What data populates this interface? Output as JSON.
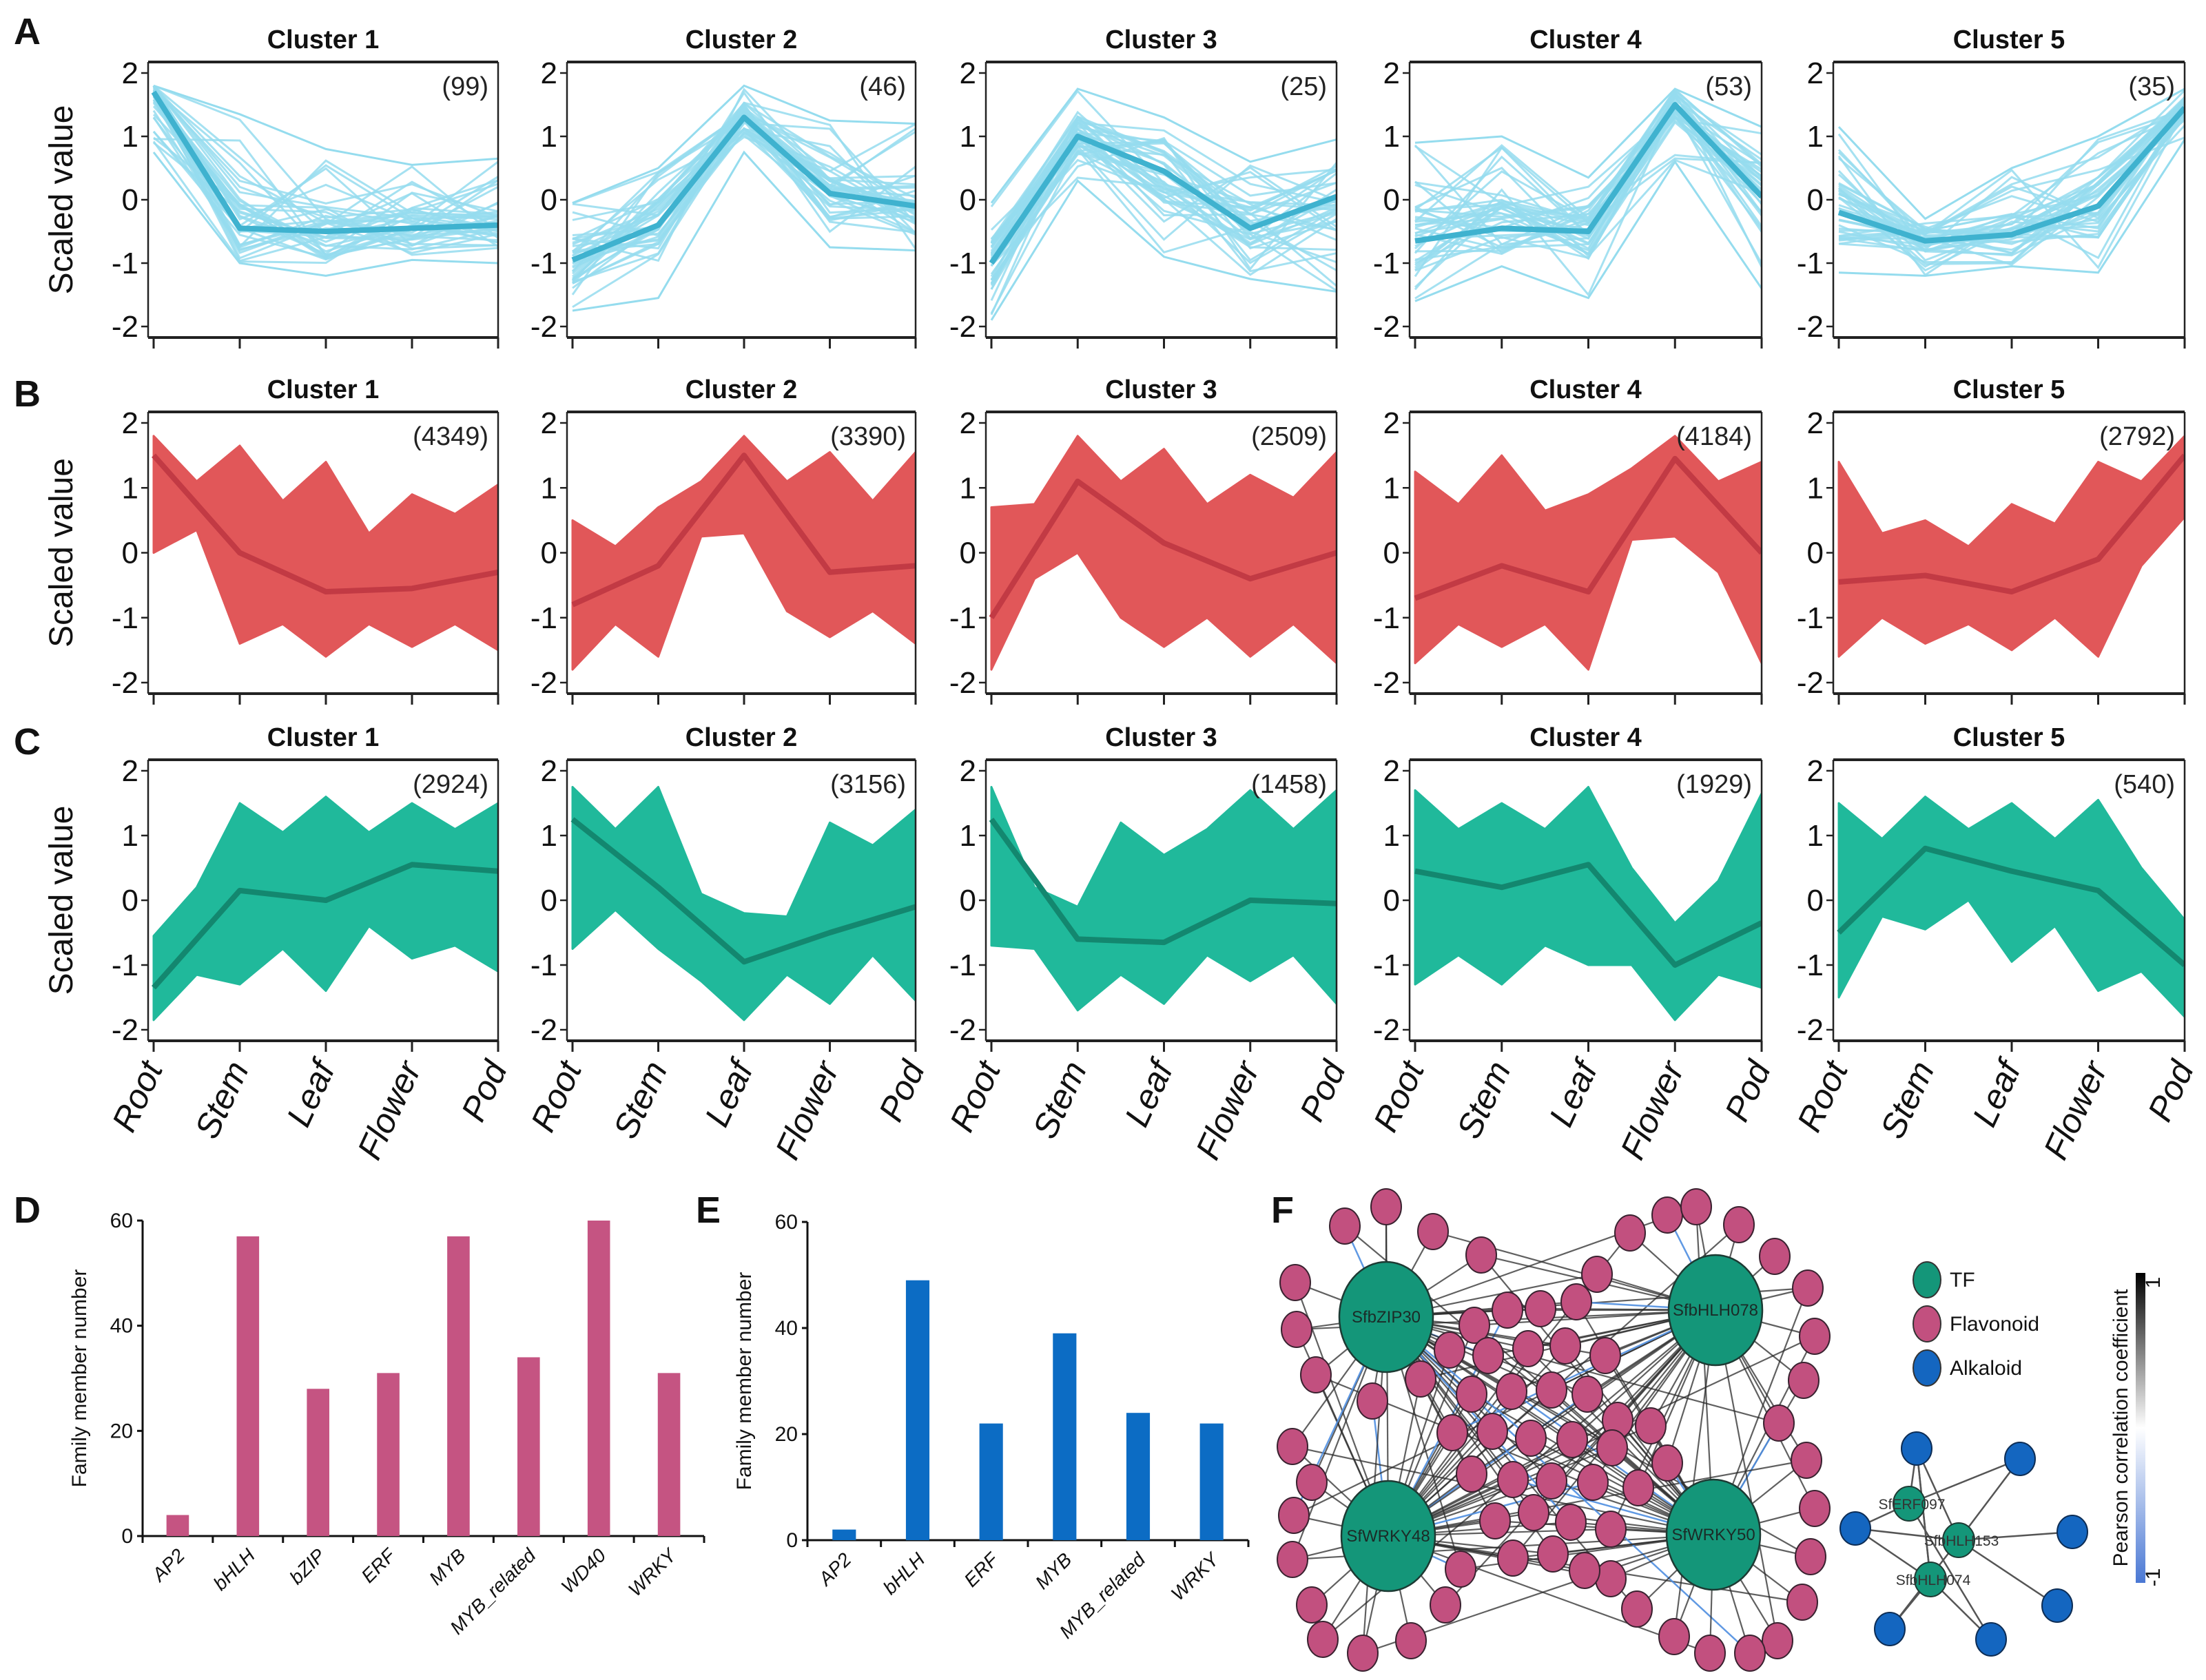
{
  "figure": {
    "panel_labels": [
      "A",
      "B",
      "C",
      "D",
      "E",
      "F"
    ]
  },
  "chart_data": [
    {
      "id": "A",
      "type": "line",
      "title": "",
      "ylabel": "Scaled value",
      "ylim": [
        -2,
        2
      ],
      "yticks": [
        "2",
        "1",
        "0",
        "-1",
        "-2"
      ],
      "ytick_values": [
        2,
        1,
        0,
        -1,
        -2
      ],
      "x": [
        "Root",
        "Stem",
        "Leaf",
        "Flower",
        "Pod"
      ],
      "colors": {
        "lines": "#95dcee",
        "mean": "#3fb2cf"
      },
      "style": "lines",
      "clusters": [
        {
          "title": "Cluster 1",
          "count": "(99)",
          "mean": [
            1.7,
            -0.45,
            -0.5,
            -0.45,
            -0.4
          ],
          "upper": [
            1.8,
            1.35,
            0.8,
            0.55,
            0.65
          ],
          "lower": [
            0.75,
            -1.0,
            -1.2,
            -0.95,
            -1.0
          ]
        },
        {
          "title": "Cluster 2",
          "count": "(46)",
          "mean": [
            -0.95,
            -0.4,
            1.3,
            0.1,
            -0.1
          ],
          "upper": [
            -0.05,
            0.5,
            1.8,
            1.25,
            1.2
          ],
          "lower": [
            -1.75,
            -1.55,
            0.75,
            -0.75,
            -0.8
          ]
        },
        {
          "title": "Cluster 3",
          "count": "(25)",
          "mean": [
            -1.0,
            1.0,
            0.45,
            -0.45,
            0.05
          ],
          "upper": [
            -0.05,
            1.75,
            1.3,
            0.6,
            0.95
          ],
          "lower": [
            -1.9,
            0.3,
            -0.9,
            -1.25,
            -1.45
          ]
        },
        {
          "title": "Cluster 4",
          "count": "(53)",
          "mean": [
            -0.65,
            -0.45,
            -0.5,
            1.5,
            0.05
          ],
          "upper": [
            0.9,
            1.0,
            0.35,
            1.75,
            1.15
          ],
          "lower": [
            -1.6,
            -1.05,
            -1.55,
            0.6,
            -1.4
          ]
        },
        {
          "title": "Cluster 5",
          "count": "(35)",
          "mean": [
            -0.2,
            -0.65,
            -0.55,
            -0.1,
            1.45
          ],
          "upper": [
            1.15,
            -0.3,
            0.5,
            1.0,
            1.75
          ],
          "lower": [
            -1.15,
            -1.2,
            -1.05,
            -1.15,
            0.95
          ]
        }
      ]
    },
    {
      "id": "B",
      "type": "area",
      "ylabel": "Scaled value",
      "ylim": [
        -2,
        2
      ],
      "yticks": [
        "2",
        "1",
        "0",
        "-1",
        "-2"
      ],
      "ytick_values": [
        2,
        1,
        0,
        -1,
        -2
      ],
      "x": [
        "Root",
        "Stem",
        "Leaf",
        "Flower",
        "Pod"
      ],
      "colors": {
        "fill": "#e15759",
        "mean": "#c23a44"
      },
      "style": "band",
      "clusters": [
        {
          "title": "Cluster 1",
          "count": "(4349)",
          "mean": [
            1.5,
            0.0,
            -0.6,
            -0.55,
            -0.3
          ],
          "upper_peaks": [
            1.8,
            1.1,
            1.65,
            0.8,
            1.4,
            0.3,
            0.9,
            0.6,
            1.05
          ],
          "lower_peaks": [
            0.0,
            0.35,
            -1.4,
            -1.1,
            -1.6,
            -1.1,
            -1.45,
            -1.1,
            -1.5
          ]
        },
        {
          "title": "Cluster 2",
          "count": "(3390)",
          "mean": [
            -0.8,
            -0.2,
            1.5,
            -0.3,
            -0.2
          ],
          "upper_peaks": [
            0.5,
            0.1,
            0.7,
            1.1,
            1.8,
            1.1,
            1.55,
            0.8,
            1.55
          ],
          "lower_peaks": [
            -1.8,
            -1.1,
            -1.6,
            0.25,
            0.3,
            -0.9,
            -1.3,
            -0.9,
            -1.4
          ]
        },
        {
          "title": "Cluster 3",
          "count": "(2509)",
          "mean": [
            -1.0,
            1.1,
            0.15,
            -0.4,
            0.0
          ],
          "upper_peaks": [
            0.7,
            0.75,
            1.8,
            1.1,
            1.6,
            0.75,
            1.2,
            0.85,
            1.55
          ],
          "lower_peaks": [
            -1.8,
            -0.4,
            0.0,
            -1.0,
            -1.45,
            -1.0,
            -1.6,
            -1.1,
            -1.7
          ]
        },
        {
          "title": "Cluster 4",
          "count": "(4184)",
          "mean": [
            -0.7,
            -0.2,
            -0.6,
            1.45,
            0.0
          ],
          "upper_peaks": [
            1.25,
            0.75,
            1.5,
            0.65,
            0.9,
            1.3,
            1.8,
            1.1,
            1.4
          ],
          "lower_peaks": [
            -1.7,
            -1.1,
            -1.45,
            -1.1,
            -1.8,
            0.2,
            0.25,
            -0.3,
            -1.7
          ]
        },
        {
          "title": "Cluster 5",
          "count": "(2792)",
          "mean": [
            -0.45,
            -0.35,
            -0.6,
            -0.1,
            1.5
          ],
          "upper_peaks": [
            1.4,
            0.3,
            0.5,
            0.1,
            0.75,
            0.45,
            1.4,
            1.1,
            1.8
          ],
          "lower_peaks": [
            -1.6,
            -1.0,
            -1.4,
            -1.1,
            -1.5,
            -1.0,
            -1.6,
            -0.2,
            0.55
          ]
        }
      ]
    },
    {
      "id": "C",
      "type": "area",
      "ylabel": "Scaled value",
      "ylim": [
        -2,
        2
      ],
      "yticks": [
        "2",
        "1",
        "0",
        "-1",
        "-2"
      ],
      "ytick_values": [
        2,
        1,
        0,
        -1,
        -2
      ],
      "x": [
        "Root",
        "Stem",
        "Leaf",
        "Flower",
        "Pod"
      ],
      "colors": {
        "fill": "#20b99b",
        "mean": "#13876f"
      },
      "style": "band",
      "clusters": [
        {
          "title": "Cluster 1",
          "count": "(2924)",
          "mean": [
            -1.35,
            0.15,
            0.0,
            0.55,
            0.45
          ],
          "upper_peaks": [
            -0.55,
            0.2,
            1.5,
            1.05,
            1.6,
            1.05,
            1.5,
            1.1,
            1.5
          ],
          "lower_peaks": [
            -1.85,
            -1.15,
            -1.3,
            -0.75,
            -1.4,
            -0.4,
            -0.9,
            -0.7,
            -1.1
          ]
        },
        {
          "title": "Cluster 2",
          "count": "(3156)",
          "mean": [
            1.25,
            0.2,
            -0.95,
            -0.5,
            -0.1
          ],
          "upper_peaks": [
            1.75,
            1.1,
            1.75,
            0.1,
            -0.2,
            -0.25,
            1.2,
            0.85,
            1.4
          ],
          "lower_peaks": [
            -0.75,
            -0.15,
            -0.75,
            -1.25,
            -1.85,
            -1.15,
            -1.6,
            -0.85,
            -1.55
          ]
        },
        {
          "title": "Cluster 3",
          "count": "(1458)",
          "mean": [
            1.25,
            -0.6,
            -0.65,
            0.0,
            -0.05
          ],
          "upper_peaks": [
            1.75,
            0.2,
            -0.1,
            1.2,
            0.7,
            1.1,
            1.7,
            1.1,
            1.7
          ],
          "lower_peaks": [
            -0.7,
            -0.75,
            -1.7,
            -1.15,
            -1.6,
            -0.85,
            -1.25,
            -0.85,
            -1.6
          ]
        },
        {
          "title": "Cluster 4",
          "count": "(1929)",
          "mean": [
            0.45,
            0.2,
            0.55,
            -1.0,
            -0.35
          ],
          "upper_peaks": [
            1.7,
            1.1,
            1.5,
            1.1,
            1.75,
            0.5,
            -0.35,
            0.3,
            1.65
          ],
          "lower_peaks": [
            -1.3,
            -0.85,
            -1.3,
            -0.7,
            -1.0,
            -1.0,
            -1.85,
            -1.15,
            -1.35
          ]
        },
        {
          "title": "Cluster 5",
          "count": "(540)",
          "mean": [
            -0.5,
            0.8,
            0.45,
            0.15,
            -1.0
          ],
          "upper_peaks": [
            1.5,
            0.95,
            1.6,
            1.1,
            1.5,
            0.95,
            1.55,
            0.5,
            -0.3
          ],
          "lower_peaks": [
            -1.5,
            -0.25,
            -0.45,
            0.0,
            -0.95,
            -0.4,
            -1.4,
            -1.1,
            -1.8
          ]
        }
      ]
    },
    {
      "id": "D",
      "type": "bar",
      "title": "",
      "xlabel": "",
      "ylabel": "Family member number",
      "ylim": [
        0,
        60
      ],
      "yticks": [
        "0",
        "20",
        "40",
        "60"
      ],
      "ytick_values": [
        0,
        20,
        40,
        60
      ],
      "categories": [
        "AP2",
        "bHLH",
        "bZIP",
        "ERF",
        "MYB",
        "MYB_related",
        "WD40",
        "WRKY"
      ],
      "values": [
        4,
        57,
        28,
        31,
        57,
        34,
        60,
        31
      ],
      "color": "#c55482"
    },
    {
      "id": "E",
      "type": "bar",
      "title": "",
      "xlabel": "",
      "ylabel": "Family member number",
      "ylim": [
        0,
        60
      ],
      "yticks": [
        "0",
        "20",
        "40",
        "60"
      ],
      "ytick_values": [
        0,
        20,
        40,
        60
      ],
      "categories": [
        "AP2",
        "bHLH",
        "ERF",
        "MYB",
        "MYB_related",
        "WRKY"
      ],
      "values": [
        2,
        49,
        22,
        39,
        24,
        22
      ],
      "color": "#0c6cc4"
    }
  ],
  "network": {
    "id": "F",
    "flavonoid_hubs": [
      "SfbZIP30",
      "SfbHLH078",
      "SfWRKY48",
      "SfWRKY50"
    ],
    "flavonoid_node_count": 72,
    "alkaloid_hubs": [
      "SfERF097",
      "SfbHLH153",
      "SfbHLH074"
    ],
    "alkaloid_node_count": 8,
    "legend": [
      {
        "label": "TF",
        "color": "#149679"
      },
      {
        "label": "Flavonoid",
        "color": "#c2507f"
      },
      {
        "label": "Alkaloid",
        "color": "#1466c0"
      }
    ],
    "colorbar": {
      "label": "Pearson correlation coefficient",
      "max_label": "1",
      "min_label": "-1",
      "range": [
        -1,
        1
      ],
      "colors": [
        "#4a78d4",
        "#ffffff",
        "#000000"
      ]
    },
    "edge_colors": {
      "positive": "#2b2b2b",
      "negative": "#4f8ee0"
    }
  }
}
